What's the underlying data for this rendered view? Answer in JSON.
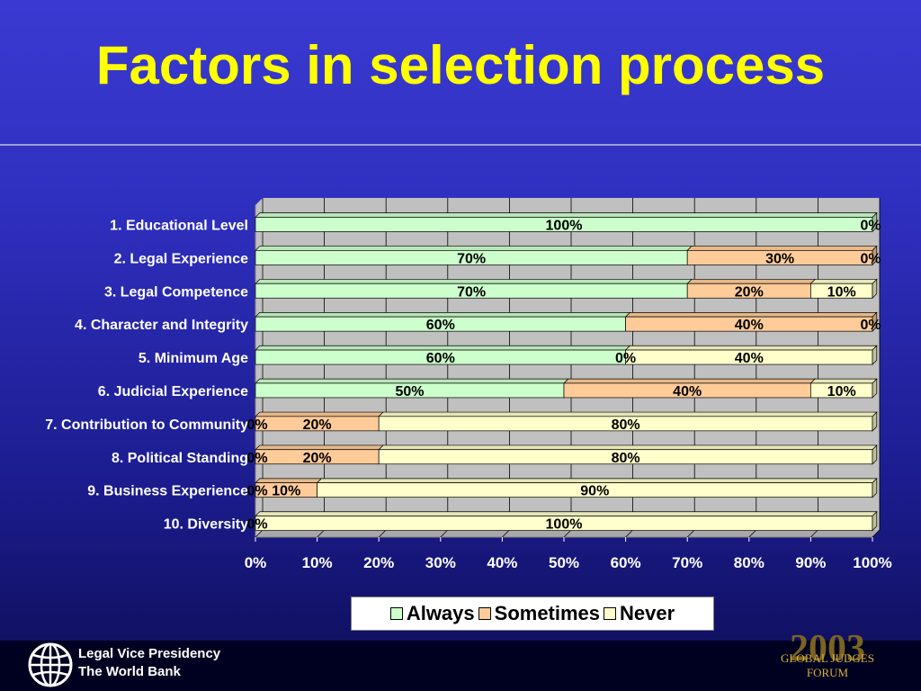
{
  "slide": {
    "title": "Factors in selection process"
  },
  "footer": {
    "org_line1": "Legal Vice Presidency",
    "org_line2": "The World Bank",
    "logo_icon": "globe-icon",
    "brand_year": "2003",
    "brand_name": "GLOBAL JUDGES FORUM"
  },
  "chart_data": {
    "type": "bar",
    "orientation": "horizontal",
    "stacked": "100%",
    "categories": [
      "1. Educational Level",
      "2. Legal Experience",
      "3. Legal Competence",
      "4. Character and Integrity",
      "5. Minimum Age",
      "6. Judicial Experience",
      "7. Contribution to Community",
      "8. Political Standing",
      "9. Business Experience",
      "10. Diversity"
    ],
    "series": [
      {
        "name": "Always",
        "color": "#ccffcc",
        "values": [
          100,
          70,
          70,
          60,
          60,
          50,
          0,
          0,
          0,
          0
        ]
      },
      {
        "name": "Sometimes",
        "color": "#ffcc99",
        "values": [
          0,
          30,
          20,
          40,
          0,
          40,
          20,
          20,
          10,
          0
        ]
      },
      {
        "name": "Never",
        "color": "#ffffcc",
        "values": [
          0,
          0,
          10,
          0,
          40,
          10,
          80,
          80,
          90,
          100
        ]
      }
    ],
    "data_labels": [
      [
        "100%",
        "0%",
        null
      ],
      [
        "70%",
        "30%",
        "0%"
      ],
      [
        "70%",
        "20%",
        "10%"
      ],
      [
        "60%",
        "40%",
        "0%"
      ],
      [
        "60%",
        "0%",
        "40%"
      ],
      [
        "50%",
        "40%",
        "10%"
      ],
      [
        "0%",
        "20%",
        "80%"
      ],
      [
        "0%",
        "20%",
        "80%"
      ],
      [
        "0%",
        "10%",
        "90%"
      ],
      [
        "0%",
        null,
        "100%"
      ]
    ],
    "xlim": [
      0,
      100
    ],
    "x_ticks": [
      "0%",
      "10%",
      "20%",
      "30%",
      "40%",
      "50%",
      "60%",
      "70%",
      "80%",
      "90%",
      "100%"
    ],
    "grid": true,
    "legend_position": "bottom",
    "plot_background": "#c0c0c0"
  }
}
